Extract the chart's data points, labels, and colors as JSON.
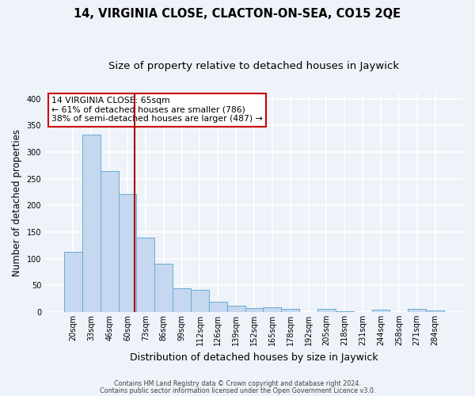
{
  "title": "14, VIRGINIA CLOSE, CLACTON-ON-SEA, CO15 2QE",
  "subtitle": "Size of property relative to detached houses in Jaywick",
  "xlabel": "Distribution of detached houses by size in Jaywick",
  "ylabel": "Number of detached properties",
  "bar_labels": [
    "20sqm",
    "33sqm",
    "46sqm",
    "60sqm",
    "73sqm",
    "86sqm",
    "99sqm",
    "112sqm",
    "126sqm",
    "139sqm",
    "152sqm",
    "165sqm",
    "178sqm",
    "192sqm",
    "205sqm",
    "218sqm",
    "231sqm",
    "244sqm",
    "258sqm",
    "271sqm",
    "284sqm"
  ],
  "bar_values": [
    113,
    333,
    265,
    222,
    140,
    91,
    44,
    42,
    19,
    12,
    7,
    9,
    6,
    0,
    6,
    2,
    0,
    5,
    0,
    6,
    3
  ],
  "bar_color": "#c5d8f0",
  "bar_edge_color": "#6aaad4",
  "vline_x": 3.38,
  "vline_color": "#aa0000",
  "annotation_title": "14 VIRGINIA CLOSE: 65sqm",
  "annotation_line1": "← 61% of detached houses are smaller (786)",
  "annotation_line2": "38% of semi-detached houses are larger (487) →",
  "annotation_box_color": "#ffffff",
  "annotation_box_edge_color": "#cc0000",
  "ylim": [
    0,
    410
  ],
  "yticks": [
    0,
    50,
    100,
    150,
    200,
    250,
    300,
    350,
    400
  ],
  "footer1": "Contains HM Land Registry data © Crown copyright and database right 2024.",
  "footer2": "Contains public sector information licensed under the Open Government Licence v3.0.",
  "background_color": "#eef2f9",
  "grid_color": "#ffffff",
  "title_fontsize": 10.5,
  "subtitle_fontsize": 9.5,
  "tick_fontsize": 7,
  "ylabel_fontsize": 8.5,
  "xlabel_fontsize": 9
}
